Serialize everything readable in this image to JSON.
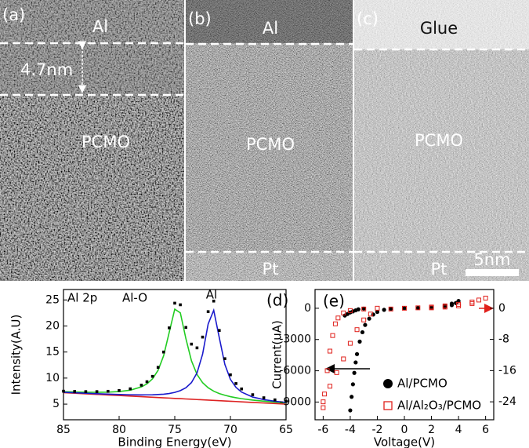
{
  "images": [
    {
      "panel": "(a)",
      "labels": [
        "Al",
        "4.7nm",
        "PCMO"
      ]
    },
    {
      "panel": "(b)",
      "labels": [
        "Al",
        "PCMO",
        "Pt"
      ]
    },
    {
      "panel": "(c)",
      "labels": [
        "Glue",
        "PCMO",
        "Pt"
      ]
    }
  ],
  "scale_bar": "5nm",
  "chart_data": [
    {
      "type": "line",
      "panel": "(d)",
      "annotations": [
        "Al 2p",
        "Al-O",
        "Al"
      ],
      "xlabel": "Binding Energy(eV)",
      "ylabel": "Intensity(A.U)",
      "xlim": [
        85,
        65
      ],
      "xticks": [
        85,
        80,
        75,
        70,
        65
      ],
      "ylim": [
        2,
        27
      ],
      "yticks": [
        5,
        10,
        15,
        20,
        25
      ],
      "x": [
        85,
        84,
        83,
        82,
        81,
        80,
        79,
        78,
        77.5,
        77,
        76.5,
        76,
        75.5,
        75,
        74.5,
        74,
        73.5,
        73,
        72.5,
        72,
        71.5,
        71,
        70.5,
        70,
        69.5,
        69,
        68,
        67,
        66,
        65
      ],
      "series": [
        {
          "color": "#dd2222",
          "values": [
            7.2,
            7.09,
            6.98,
            6.87,
            6.76,
            6.65,
            6.54,
            6.43,
            6.38,
            6.32,
            6.27,
            6.21,
            6.16,
            6.1,
            6.05,
            5.99,
            5.94,
            5.88,
            5.83,
            5.77,
            5.72,
            5.66,
            5.61,
            5.55,
            5.5,
            5.44,
            5.33,
            5.22,
            5.11,
            5.0
          ]
        },
        {
          "color": "#22cc22",
          "values": [
            7.4,
            7.34,
            7.29,
            7.27,
            7.3,
            7.41,
            7.68,
            8.3,
            8.9,
            9.86,
            11.49,
            14.3,
            18.76,
            23.23,
            22.53,
            17.57,
            13.32,
            10.69,
            9.12,
            8.14,
            7.49,
            7.03,
            6.7,
            6.43,
            6.23,
            6.05,
            5.78,
            5.57,
            5.38,
            5.22
          ]
        },
        {
          "color": "#1a1acc",
          "values": [
            7.28,
            7.18,
            7.09,
            7.0,
            6.92,
            6.85,
            6.8,
            6.77,
            6.78,
            6.79,
            6.84,
            6.91,
            7.04,
            7.25,
            7.59,
            8.14,
            9.14,
            10.99,
            14.58,
            20.38,
            23.01,
            17.77,
            12.63,
            9.75,
            8.22,
            7.31,
            6.36,
            5.87,
            5.55,
            5.32
          ]
        },
        {
          "color": "#000000",
          "marker": "square",
          "values": [
            7.48,
            7.43,
            7.4,
            7.4,
            7.46,
            7.61,
            7.94,
            8.64,
            9.3,
            10.33,
            12.06,
            15.0,
            19.64,
            24.38,
            24.07,
            19.72,
            16.52,
            15.8,
            17.87,
            22.75,
            24.78,
            19.14,
            13.72,
            10.63,
            8.95,
            7.92,
            6.81,
            6.22,
            5.82,
            5.54
          ]
        }
      ]
    },
    {
      "type": "scatter",
      "panel": "(e)",
      "xlabel": "Voltage(V)",
      "ylabel": "Current(uA)",
      "xlim": [
        -6.6,
        6.6
      ],
      "xticks": [
        -6,
        -4,
        -2,
        0,
        2,
        4,
        6
      ],
      "ylim": [
        -10700,
        1800
      ],
      "yticks": [
        0,
        -3000,
        -6000,
        -9000
      ],
      "y2lim": [
        -28.6,
        4.8
      ],
      "y2ticks": [
        0,
        -8,
        -16,
        -24
      ],
      "legend": "lower right",
      "series": [
        {
          "name": "Al/PCMO",
          "color": "#000000",
          "marker": "circle",
          "x": [
            -4,
            -3.9,
            -3.8,
            -3.7,
            -3.6,
            -3.5,
            -3.3,
            -3.1,
            -2.9,
            -2.6,
            -2.3,
            -2,
            -1.5,
            -1,
            0,
            1,
            2,
            3,
            3.5,
            3.8,
            4,
            3.5,
            3,
            -4.4,
            -4.2,
            -4,
            -3.8,
            -3.6,
            -3.4,
            -3
          ],
          "values": [
            -9800,
            -8500,
            -7300,
            -6200,
            -5200,
            -4400,
            -3200,
            -2300,
            -1600,
            -1000,
            -600,
            -350,
            -150,
            -60,
            0,
            30,
            60,
            150,
            300,
            500,
            700,
            450,
            250,
            -700,
            -550,
            -400,
            -300,
            -200,
            -100,
            -30
          ]
        },
        {
          "name": "Al/Al₂O₃/PCMO",
          "color": "#e0201b",
          "marker": "open-square",
          "axis": "y2",
          "x": [
            -6,
            -5.9,
            -5.7,
            -5.5,
            -5.3,
            -5.1,
            -4.9,
            -4.5,
            -4,
            -3,
            -2,
            -6,
            -5.5,
            -5,
            -4.5,
            -4,
            -3.5,
            -3,
            -2.5,
            -1,
            0,
            1,
            2,
            3,
            4,
            5,
            5.5,
            6,
            5,
            4,
            3,
            2
          ],
          "values": [
            -25.5,
            -22,
            -16,
            -11,
            -7,
            -4,
            -2.5,
            -1.2,
            -0.6,
            -0.2,
            0,
            -24,
            -20,
            -16.5,
            -13,
            -9,
            -5.5,
            -3,
            -1.5,
            -0.2,
            0,
            0.1,
            0.3,
            0.6,
            1,
            1.6,
            2.1,
            2.6,
            1.2,
            0.6,
            0.3,
            0.1
          ]
        }
      ]
    }
  ]
}
